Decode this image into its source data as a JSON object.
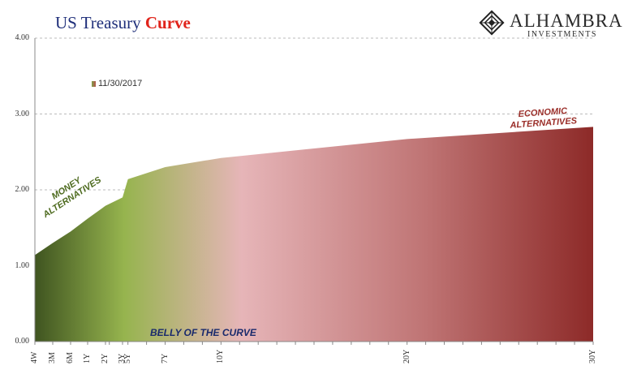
{
  "header": {
    "title_part1": "US Treasury",
    "title_part2": "Curve"
  },
  "logo": {
    "name": "ALHAMBRA",
    "subtitle": "INVESTMENTS",
    "icon": "diamond-lattice-icon"
  },
  "annotations": {
    "money": [
      "MONEY",
      "ALTERNATIVES"
    ],
    "economic": [
      "ECONOMIC",
      "ALTERNATIVES"
    ],
    "belly": "BELLY OF THE CURVE"
  },
  "colors": {
    "money_label": "#4d6a1e",
    "economic_label": "#9a2d28",
    "belly_label": "#1a2a6c"
  },
  "chart_data": {
    "type": "area",
    "title": "US Treasury Curve",
    "xlabel": "",
    "ylabel": "",
    "ylim": [
      0,
      4
    ],
    "yticks": [
      "0.00",
      "1.00",
      "2.00",
      "3.00",
      "4.00"
    ],
    "grid": "horizontal dashed",
    "legend": "top-left",
    "series": [
      {
        "name": "11/30/2017",
        "maturities_years": [
          0.077,
          0.25,
          0.5,
          1,
          2,
          3,
          5,
          7,
          10,
          20,
          30
        ],
        "tick_labels": [
          "4W",
          "3M",
          "6M",
          "1Y",
          "2Y",
          "3Y",
          "5Y",
          "7Y",
          "10Y",
          "20Y",
          "30Y"
        ],
        "values": [
          1.14,
          1.3,
          1.45,
          1.62,
          1.79,
          1.9,
          2.14,
          2.3,
          2.42,
          2.67,
          2.83
        ]
      }
    ]
  }
}
